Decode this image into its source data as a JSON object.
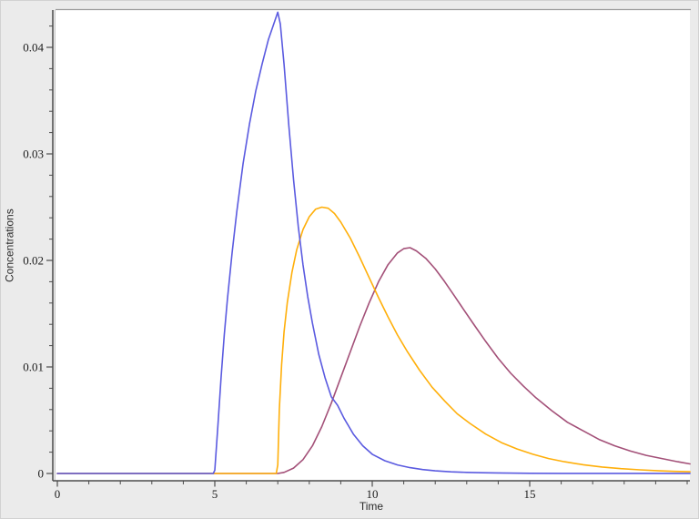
{
  "window": {
    "background_color": "#ebebeb",
    "plot_background_color": "#ffffff",
    "axis_color": "#4b4b4b",
    "frame_top_color": "#9d9d9d",
    "frame_left_color": "#c8c8c8",
    "tick_text_color": "#1c1c1c"
  },
  "chart_data": {
    "type": "line",
    "title": "",
    "xlabel": "Time",
    "ylabel": "Concentrations",
    "xlim": [
      0,
      20.1
    ],
    "ylim": [
      0,
      0.0435
    ],
    "grid": false,
    "legend": "none",
    "x_major_ticks": [
      0,
      5,
      10,
      15
    ],
    "x_tick_labels": [
      "0",
      "5",
      "10",
      "15"
    ],
    "x_minor_step": 1,
    "y_major_ticks": [
      0,
      0.01,
      0.02,
      0.03,
      0.04
    ],
    "y_tick_labels": [
      "0",
      "0.01",
      "0.02",
      "0.03",
      "0.04"
    ],
    "y_minor_step": 0.002,
    "series": [
      {
        "name": "concentration-curve-maroon",
        "color": "#a35078",
        "points": [
          [
            0,
            0
          ],
          [
            2,
            0
          ],
          [
            4,
            0
          ],
          [
            6,
            0
          ],
          [
            7.0,
            0
          ],
          [
            7.2,
            0.0001
          ],
          [
            7.5,
            0.0005
          ],
          [
            7.8,
            0.0013
          ],
          [
            8.1,
            0.0026
          ],
          [
            8.4,
            0.0044
          ],
          [
            8.7,
            0.0066
          ],
          [
            9.0,
            0.009
          ],
          [
            9.3,
            0.0114
          ],
          [
            9.6,
            0.0138
          ],
          [
            9.9,
            0.016
          ],
          [
            10.2,
            0.018
          ],
          [
            10.5,
            0.0196
          ],
          [
            10.8,
            0.0207
          ],
          [
            11.0,
            0.0211
          ],
          [
            11.2,
            0.0212
          ],
          [
            11.4,
            0.0209
          ],
          [
            11.7,
            0.0202
          ],
          [
            12.0,
            0.0192
          ],
          [
            12.3,
            0.018
          ],
          [
            12.6,
            0.0167
          ],
          [
            12.9,
            0.0154
          ],
          [
            13.2,
            0.0141
          ],
          [
            13.6,
            0.0124
          ],
          [
            14.0,
            0.0108
          ],
          [
            14.4,
            0.0094
          ],
          [
            14.8,
            0.0082
          ],
          [
            15.2,
            0.0071
          ],
          [
            15.7,
            0.0059
          ],
          [
            16.2,
            0.0048
          ],
          [
            16.7,
            0.004
          ],
          [
            17.2,
            0.0032
          ],
          [
            17.7,
            0.0026
          ],
          [
            18.2,
            0.0021
          ],
          [
            18.7,
            0.0017
          ],
          [
            19.2,
            0.0014
          ],
          [
            19.7,
            0.0011
          ],
          [
            20.09,
            0.0009
          ]
        ]
      },
      {
        "name": "concentration-curve-orange",
        "color": "#ffaf0a",
        "points": [
          [
            0,
            0
          ],
          [
            2,
            0
          ],
          [
            4,
            0
          ],
          [
            5,
            0
          ],
          [
            6,
            0
          ],
          [
            6.95,
            0
          ],
          [
            7.0,
            0.0008
          ],
          [
            7.05,
            0.006
          ],
          [
            7.12,
            0.0102
          ],
          [
            7.2,
            0.0133
          ],
          [
            7.3,
            0.016
          ],
          [
            7.45,
            0.0189
          ],
          [
            7.6,
            0.021
          ],
          [
            7.8,
            0.0229
          ],
          [
            8.0,
            0.0241
          ],
          [
            8.2,
            0.0248
          ],
          [
            8.4,
            0.025
          ],
          [
            8.6,
            0.0249
          ],
          [
            8.8,
            0.0244
          ],
          [
            9.0,
            0.0236
          ],
          [
            9.3,
            0.0221
          ],
          [
            9.6,
            0.0203
          ],
          [
            9.9,
            0.0184
          ],
          [
            10.2,
            0.0165
          ],
          [
            10.5,
            0.0147
          ],
          [
            10.8,
            0.013
          ],
          [
            11.1,
            0.0115
          ],
          [
            11.5,
            0.0097
          ],
          [
            11.9,
            0.0081
          ],
          [
            12.3,
            0.0068
          ],
          [
            12.7,
            0.0056
          ],
          [
            13.1,
            0.0047
          ],
          [
            13.6,
            0.0037
          ],
          [
            14.1,
            0.0029
          ],
          [
            14.6,
            0.0023
          ],
          [
            15.1,
            0.0018
          ],
          [
            15.6,
            0.0014
          ],
          [
            16.1,
            0.0011
          ],
          [
            16.7,
            0.00082
          ],
          [
            17.3,
            0.00061
          ],
          [
            17.9,
            0.00045
          ],
          [
            18.5,
            0.00034
          ],
          [
            19.1,
            0.00025
          ],
          [
            19.6,
            0.0002
          ],
          [
            20.09,
            0.00016
          ]
        ]
      },
      {
        "name": "concentration-curve-blue",
        "color": "#5a5ae0",
        "points": [
          [
            0,
            0
          ],
          [
            1,
            0
          ],
          [
            2,
            0
          ],
          [
            3,
            0
          ],
          [
            4,
            0
          ],
          [
            4.95,
            0
          ],
          [
            5.0,
            0.0003
          ],
          [
            5.1,
            0.0046
          ],
          [
            5.2,
            0.009
          ],
          [
            5.3,
            0.013
          ],
          [
            5.4,
            0.0163
          ],
          [
            5.55,
            0.0207
          ],
          [
            5.7,
            0.0246
          ],
          [
            5.9,
            0.0291
          ],
          [
            6.1,
            0.0328
          ],
          [
            6.3,
            0.0359
          ],
          [
            6.5,
            0.0384
          ],
          [
            6.7,
            0.0407
          ],
          [
            6.85,
            0.042
          ],
          [
            7.0,
            0.0433
          ],
          [
            7.08,
            0.0422
          ],
          [
            7.2,
            0.0384
          ],
          [
            7.35,
            0.0327
          ],
          [
            7.5,
            0.0276
          ],
          [
            7.65,
            0.0232
          ],
          [
            7.8,
            0.0196
          ],
          [
            7.95,
            0.0166
          ],
          [
            8.1,
            0.0141
          ],
          [
            8.3,
            0.0112
          ],
          [
            8.5,
            0.009
          ],
          [
            8.7,
            0.0072
          ],
          [
            8.9,
            0.0064
          ],
          [
            9.1,
            0.0052
          ],
          [
            9.4,
            0.0037
          ],
          [
            9.7,
            0.0026
          ],
          [
            10.0,
            0.0018
          ],
          [
            10.4,
            0.0012
          ],
          [
            10.8,
            0.0008
          ],
          [
            11.2,
            0.00055
          ],
          [
            11.6,
            0.00037
          ],
          [
            12.0,
            0.00025
          ],
          [
            12.5,
            0.00015
          ],
          [
            13.0,
            0.0001
          ],
          [
            13.5,
            7e-05
          ],
          [
            14.0,
            5e-05
          ],
          [
            15.0,
            2e-05
          ],
          [
            16.0,
            1e-05
          ],
          [
            18.0,
            1e-05
          ],
          [
            20.09,
            1e-05
          ]
        ]
      }
    ]
  }
}
